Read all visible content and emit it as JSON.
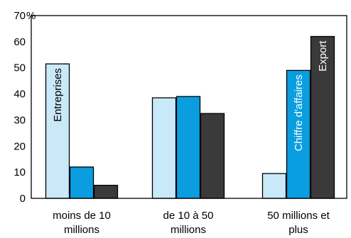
{
  "chart_data": {
    "type": "bar",
    "categories": [
      [
        "moins de 10",
        "millions"
      ],
      [
        "de 10 à 50",
        "millions"
      ],
      [
        "50 millions et",
        "plus"
      ]
    ],
    "series": [
      {
        "name": "Entreprises",
        "color": "#c9e8f8",
        "values": [
          51.5,
          38.5,
          9.5
        ]
      },
      {
        "name": "Chiffre d'affaires",
        "color": "#0a9ee0",
        "values": [
          12,
          39,
          49
        ]
      },
      {
        "name": "Export",
        "color": "#3a3a3a",
        "values": [
          5,
          32.5,
          62
        ]
      }
    ],
    "ylim": [
      0,
      70
    ],
    "yticks": [
      0,
      10,
      20,
      30,
      40,
      50,
      60,
      70
    ],
    "yunit": "%",
    "grid": false,
    "in_bar_labels": [
      {
        "series": 0,
        "category": 0,
        "text": "Entreprises",
        "color": "#000000"
      },
      {
        "series": 1,
        "category": 2,
        "text": "Chiffre d'affaires",
        "color": "#ffffff"
      },
      {
        "series": 2,
        "category": 2,
        "text": "Export",
        "color": "#ffffff"
      }
    ]
  }
}
